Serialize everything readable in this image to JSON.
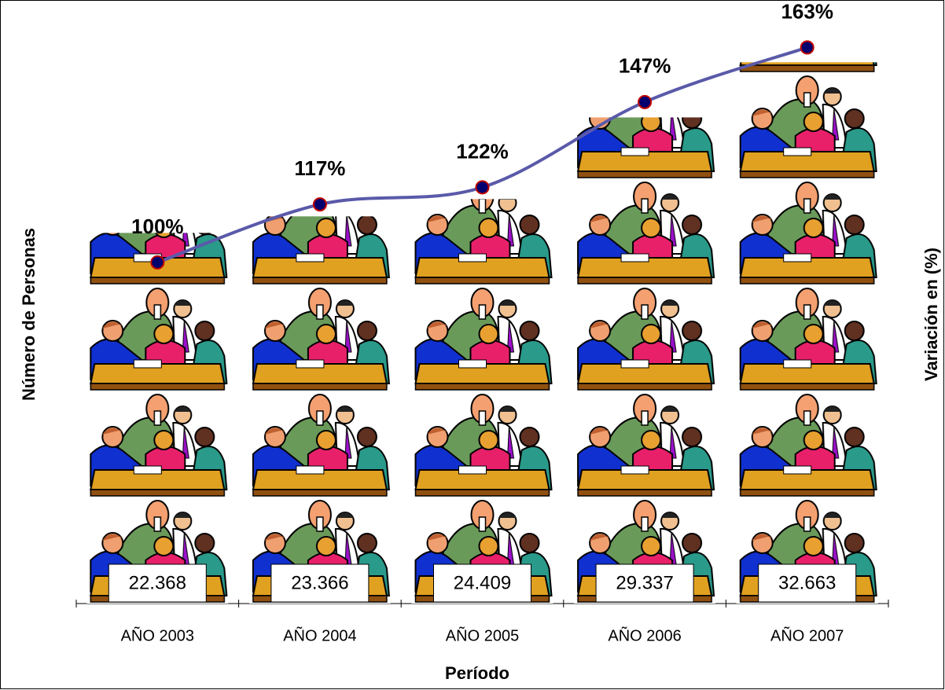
{
  "chart_data": {
    "type": "bar",
    "x_label": "Período",
    "y_label": "Número de Personas",
    "y2_label": "Variación en (%)",
    "categories": [
      "AÑO 2003",
      "AÑO 2004",
      "AÑO 2005",
      "AÑO 2006",
      "AÑO 2007"
    ],
    "series": [
      {
        "type": "bar",
        "values": [
          22368,
          23366,
          24409,
          29337,
          32663
        ],
        "value_labels": [
          "22.368",
          "23.366",
          "24.409",
          "29.337",
          "32.663"
        ]
      },
      {
        "type": "line",
        "axis": "y2",
        "color": "#5a5aaa",
        "marker_color": "#00006e",
        "marker_edge": "#c00000",
        "values": [
          100,
          117,
          122,
          147,
          163
        ],
        "value_labels": [
          "100%",
          "117%",
          "122%",
          "147%",
          "163%"
        ]
      }
    ],
    "ylim": [
      0,
      35000
    ],
    "y2lim": [
      0,
      170
    ]
  }
}
